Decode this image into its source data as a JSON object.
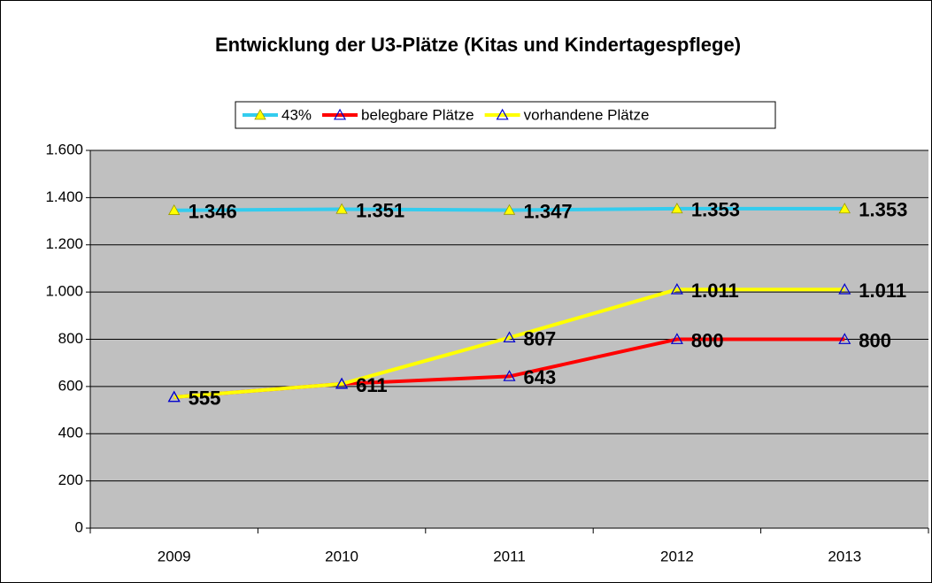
{
  "chart_data": {
    "type": "line",
    "title": "Entwicklung der U3-Plätze (Kitas und Kindertagespflege)",
    "categories": [
      "2009",
      "2010",
      "2011",
      "2012",
      "2013"
    ],
    "series": [
      {
        "name": "43%",
        "color": "#33ccee",
        "marker_color": "#ffff00",
        "marker_fill": true,
        "values": [
          1346,
          1351,
          1347,
          1353,
          1353
        ],
        "value_labels": [
          "1.346",
          "1.351",
          "1.347",
          "1.353",
          "1.353"
        ]
      },
      {
        "name": "belegbare Plätze",
        "color": "#ff0000",
        "marker_color": "#0000cc",
        "marker_fill": false,
        "values": [
          555,
          611,
          643,
          800,
          800
        ]
      },
      {
        "name": "vorhandene Plätze",
        "color": "#ffff00",
        "marker_color": "#0000cc",
        "marker_fill": false,
        "values": [
          555,
          611,
          807,
          1011,
          1011
        ],
        "value_labels": [
          "555",
          "611",
          "807",
          "1.011",
          "1.011"
        ]
      }
    ],
    "ylim": [
      0,
      1600
    ],
    "yticks": [
      0,
      200,
      400,
      600,
      800,
      {
        "value": 1000,
        "label": "1.000"
      },
      {
        "value": 1200,
        "label": "1.200"
      },
      {
        "value": 1400,
        "label": "1.400"
      },
      {
        "value": 1600,
        "label": "1.600"
      }
    ],
    "grid": true,
    "legend": "top"
  }
}
